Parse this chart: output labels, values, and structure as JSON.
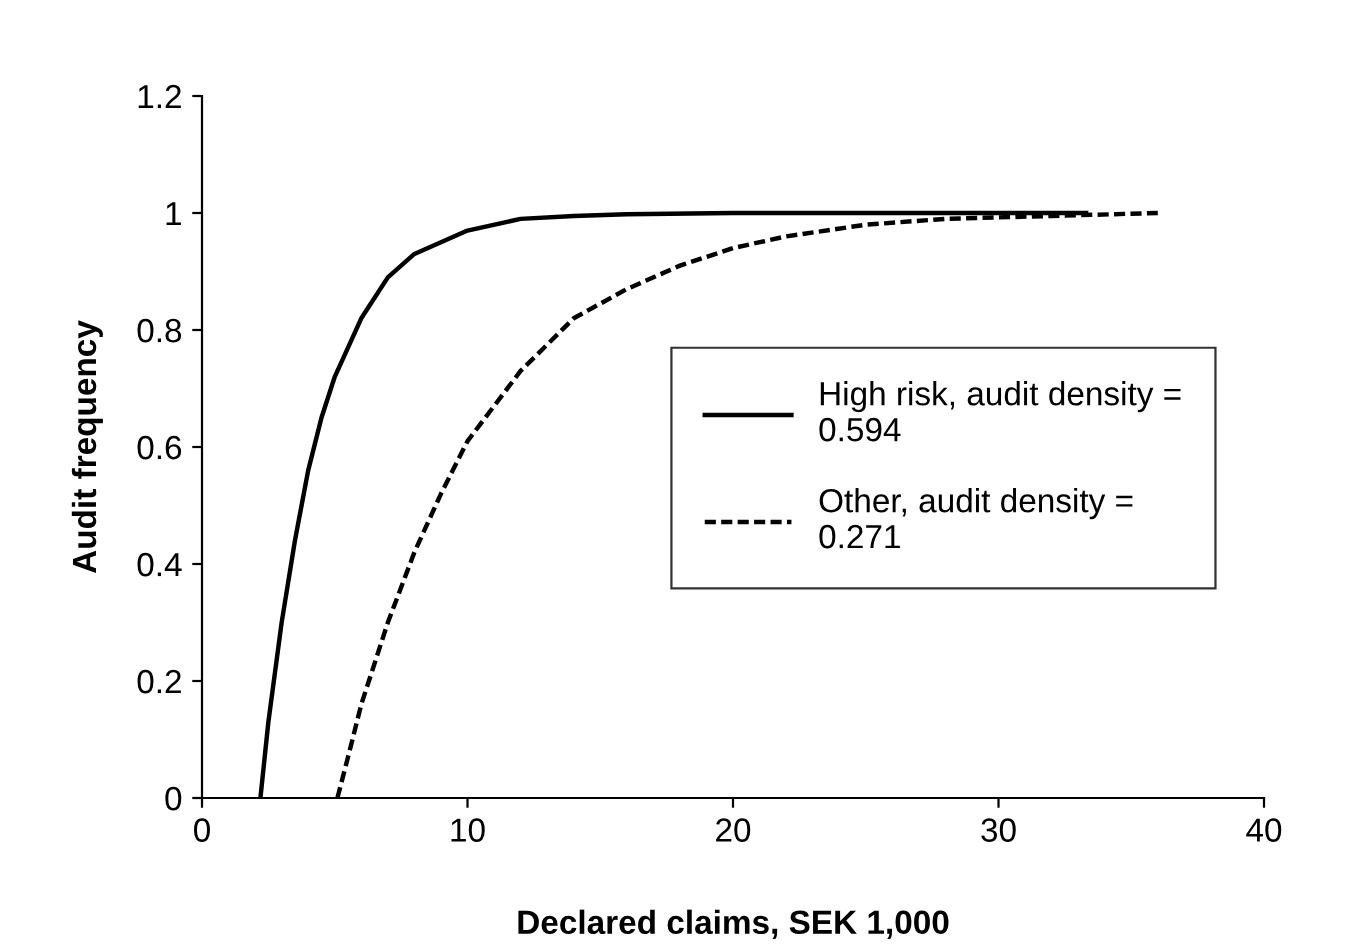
{
  "chart_data": {
    "type": "line",
    "xlabel": "Declared claims, SEK 1,000",
    "ylabel": "Audit frequency",
    "xlim": [
      0,
      40
    ],
    "xticks": [
      0,
      10,
      20,
      30,
      40
    ],
    "ylim": [
      0,
      1.2
    ],
    "yticks": [
      0,
      0.2,
      0.4,
      0.6,
      0.8,
      1,
      1.2
    ],
    "grid": false,
    "legend": "right",
    "marker": "none",
    "series": [
      {
        "name": "High risk, audit density =\n0.594",
        "color": "#000000",
        "line_style": "solid",
        "x": [
          2.2,
          2.5,
          3,
          3.5,
          4,
          4.5,
          5,
          6,
          7,
          8,
          9,
          10,
          12,
          14,
          16,
          20,
          25,
          33.3
        ],
        "values": [
          0,
          0.13,
          0.3,
          0.44,
          0.56,
          0.65,
          0.72,
          0.82,
          0.89,
          0.93,
          0.95,
          0.97,
          0.99,
          0.995,
          0.998,
          1,
          1,
          1
        ]
      },
      {
        "name": "Other, audit density =\n0.271",
        "color": "#000000",
        "line_style": "dashed",
        "x": [
          5.1,
          5.5,
          6,
          7,
          8,
          9,
          10,
          12,
          14,
          16,
          18,
          20,
          22,
          25,
          28,
          32,
          36
        ],
        "values": [
          0,
          0.07,
          0.16,
          0.3,
          0.42,
          0.52,
          0.61,
          0.73,
          0.82,
          0.87,
          0.91,
          0.94,
          0.96,
          0.98,
          0.99,
          0.995,
          1
        ]
      }
    ]
  }
}
